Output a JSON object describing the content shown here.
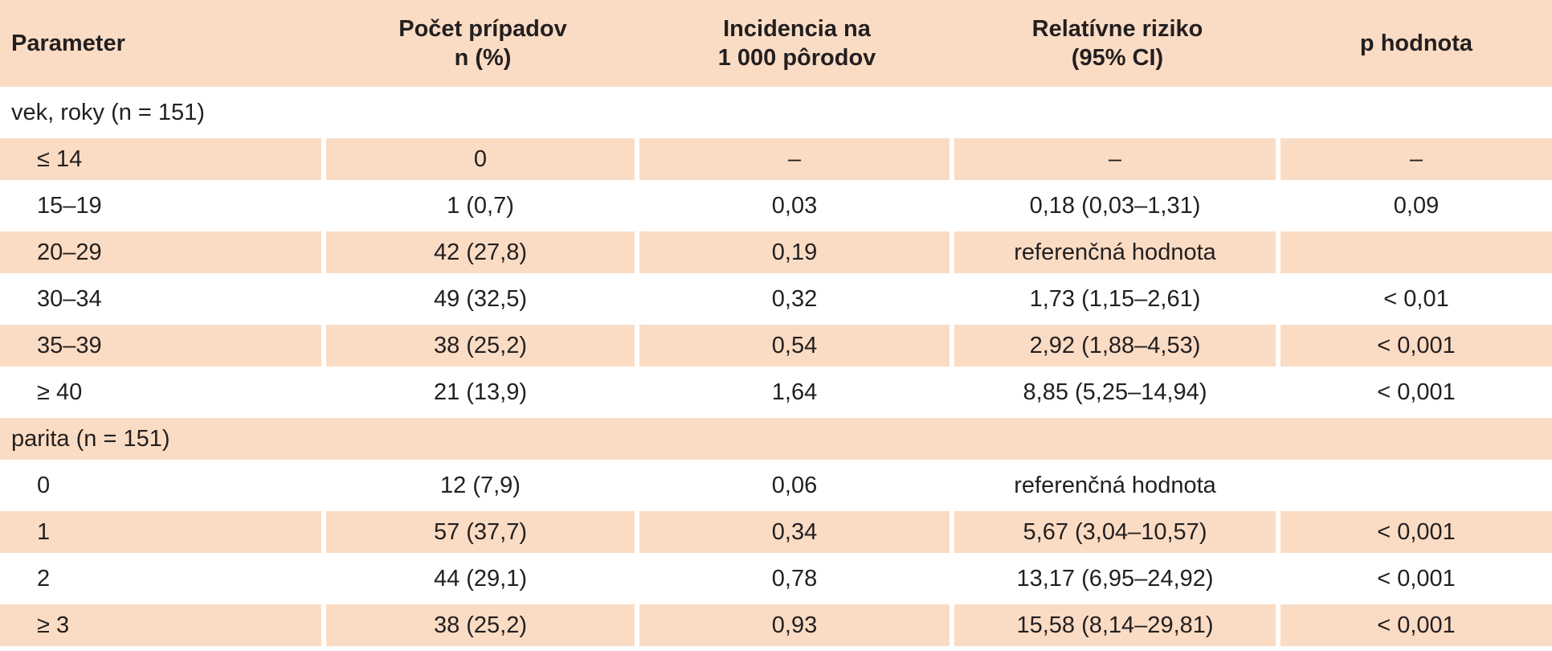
{
  "header": {
    "parameter": "Parameter",
    "count": [
      "Počet prípadov",
      "n (%)"
    ],
    "incidence": [
      "Incidencia na",
      "1 000 pôrodov"
    ],
    "risk": [
      "Relatívne riziko",
      "(95% CI)"
    ],
    "p": "p hodnota"
  },
  "groups": [
    {
      "label": "vek, roky (n = 151)",
      "rows": [
        {
          "param": "≤ 14",
          "count": "0",
          "incidence": "–",
          "risk": "–",
          "p": "–"
        },
        {
          "param": "15–19",
          "count": "1 (0,7)",
          "incidence": "0,03",
          "risk": "0,18 (0,03–1,31)",
          "p": "0,09"
        },
        {
          "param": "20–29",
          "count": "42 (27,8)",
          "incidence": "0,19",
          "risk": "referenčná hodnota",
          "p": ""
        },
        {
          "param": "30–34",
          "count": "49 (32,5)",
          "incidence": "0,32",
          "risk": "1,73 (1,15–2,61)",
          "p": "< 0,01"
        },
        {
          "param": "35–39",
          "count": "38 (25,2)",
          "incidence": "0,54",
          "risk": "2,92 (1,88–4,53)",
          "p": "< 0,001"
        },
        {
          "param": "≥ 40",
          "count": "21 (13,9)",
          "incidence": "1,64",
          "risk": "8,85 (5,25–14,94)",
          "p": "< 0,001"
        }
      ]
    },
    {
      "label": "parita (n = 151)",
      "rows": [
        {
          "param": "0",
          "count": "12 (7,9)",
          "incidence": "0,06",
          "risk": "referenčná hodnota",
          "p": ""
        },
        {
          "param": "1",
          "count": "57 (37,7)",
          "incidence": "0,34",
          "risk": "5,67 (3,04–10,57)",
          "p": "< 0,001"
        },
        {
          "param": "2",
          "count": "44 (29,1)",
          "incidence": "0,78",
          "risk": "13,17 (6,95–24,92)",
          "p": "< 0,001"
        },
        {
          "param": "≥ 3",
          "count": "38 (25,2)",
          "incidence": "0,93",
          "risk": "15,58 (8,14–29,81)",
          "p": "< 0,001"
        }
      ]
    }
  ]
}
